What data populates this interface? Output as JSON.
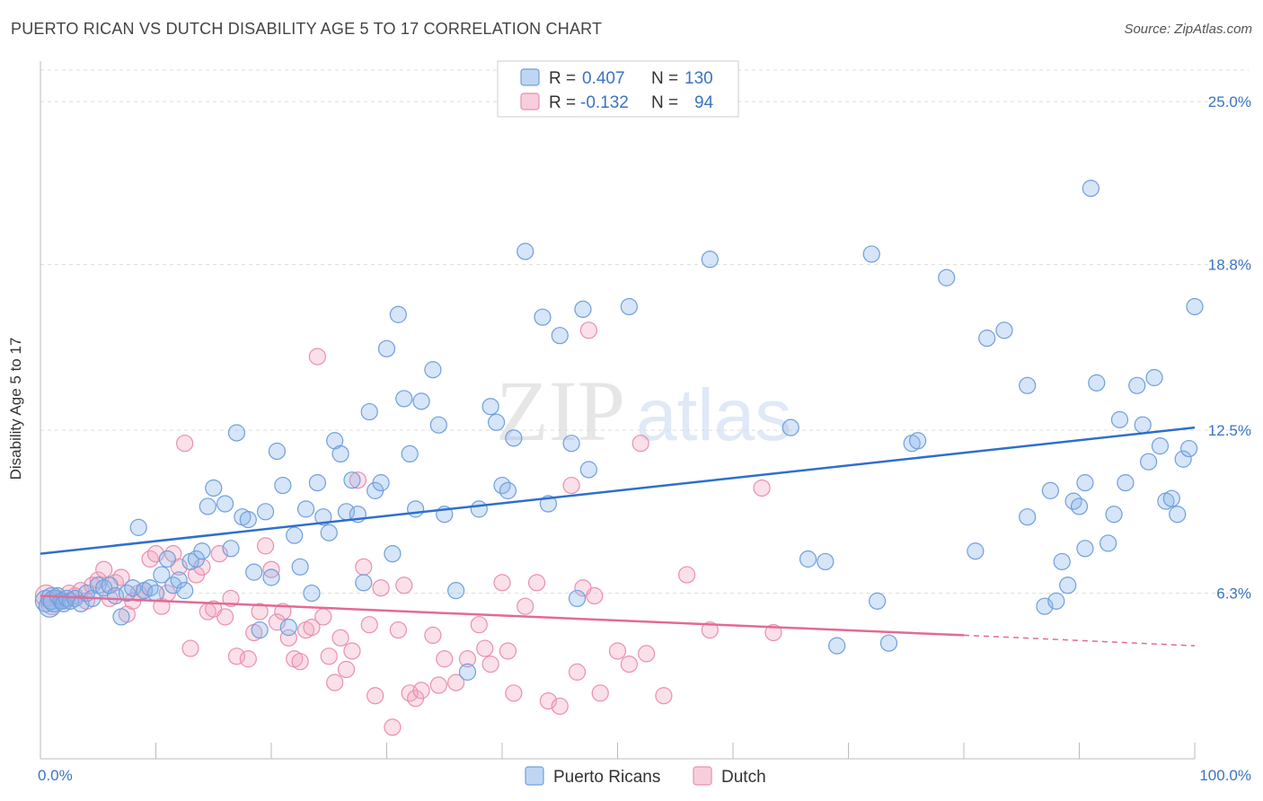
{
  "title": "PUERTO RICAN VS DUTCH DISABILITY AGE 5 TO 17 CORRELATION CHART",
  "source": "Source: ZipAtlas.com",
  "watermark": {
    "zip": "ZIP",
    "atlas": "atlas"
  },
  "colors": {
    "blue": "#8ab4ea",
    "blue_line": "#2f6fcc",
    "pink": "#f2a6bf",
    "pink_line": "#e36a96",
    "tick_text": "#3a74c4",
    "grid": "#dddddd"
  },
  "legend": {
    "rows": [
      {
        "r_label": "R =",
        "r_value": "0.407",
        "n_label": "N =",
        "n_value": "130",
        "color": "blue"
      },
      {
        "r_label": "R =",
        "r_value": "-0.132",
        "n_label": "N =",
        "n_value": "94",
        "color": "pink"
      }
    ]
  },
  "bottom_legend": [
    {
      "label": "Puerto Ricans",
      "color": "blue"
    },
    {
      "label": "Dutch",
      "color": "pink"
    }
  ],
  "chart_data": {
    "type": "scatter",
    "title": "PUERTO RICAN VS DUTCH DISABILITY AGE 5 TO 17 CORRELATION CHART",
    "xlabel": "",
    "ylabel": "Disability Age 5 to 17",
    "xlim": [
      0,
      100
    ],
    "ylim": [
      0,
      25
    ],
    "x_tick_labels": [
      "0.0%",
      "100.0%"
    ],
    "y_ticks": [
      6.3,
      12.5,
      18.8,
      25.0
    ],
    "y_tick_labels": [
      "6.3%",
      "12.5%",
      "18.8%",
      "25.0%"
    ],
    "grid": true,
    "series": [
      {
        "name": "Puerto Ricans",
        "color": "blue",
        "trend": {
          "x": [
            0,
            100
          ],
          "y": [
            7.8,
            12.6
          ]
        },
        "points": [
          [
            0.5,
            6.0
          ],
          [
            0.8,
            5.8
          ],
          [
            1.0,
            6.1
          ],
          [
            1.2,
            6.0
          ],
          [
            1.5,
            6.2
          ],
          [
            1.8,
            6.0
          ],
          [
            2.0,
            5.9
          ],
          [
            2.3,
            6.1
          ],
          [
            2.6,
            6.0
          ],
          [
            3.0,
            6.1
          ],
          [
            3.5,
            5.9
          ],
          [
            4.0,
            6.3
          ],
          [
            4.5,
            6.1
          ],
          [
            5.0,
            6.6
          ],
          [
            5.5,
            6.5
          ],
          [
            6.0,
            6.6
          ],
          [
            6.5,
            6.2
          ],
          [
            7.0,
            5.4
          ],
          [
            7.5,
            6.3
          ],
          [
            8.0,
            6.5
          ],
          [
            8.5,
            8.8
          ],
          [
            9.0,
            6.4
          ],
          [
            9.5,
            6.5
          ],
          [
            10.0,
            6.3
          ],
          [
            10.5,
            7.0
          ],
          [
            11.0,
            7.6
          ],
          [
            11.5,
            6.6
          ],
          [
            12.0,
            6.8
          ],
          [
            12.5,
            6.4
          ],
          [
            13.0,
            7.5
          ],
          [
            13.5,
            7.6
          ],
          [
            14.0,
            7.9
          ],
          [
            14.5,
            9.6
          ],
          [
            15.0,
            10.3
          ],
          [
            16.0,
            9.7
          ],
          [
            16.5,
            8.0
          ],
          [
            17.0,
            12.4
          ],
          [
            17.5,
            9.2
          ],
          [
            18.0,
            9.1
          ],
          [
            18.5,
            7.1
          ],
          [
            19.0,
            4.9
          ],
          [
            19.5,
            9.4
          ],
          [
            20.0,
            6.9
          ],
          [
            20.5,
            11.7
          ],
          [
            21.0,
            10.4
          ],
          [
            21.5,
            5.0
          ],
          [
            22.0,
            8.5
          ],
          [
            22.5,
            7.3
          ],
          [
            23.0,
            9.5
          ],
          [
            23.5,
            6.3
          ],
          [
            24.0,
            10.5
          ],
          [
            24.5,
            9.2
          ],
          [
            25.0,
            8.6
          ],
          [
            25.5,
            12.1
          ],
          [
            26.0,
            11.6
          ],
          [
            26.5,
            9.4
          ],
          [
            27.0,
            10.6
          ],
          [
            27.5,
            9.3
          ],
          [
            28.0,
            6.7
          ],
          [
            28.5,
            13.2
          ],
          [
            29.0,
            10.2
          ],
          [
            29.5,
            10.5
          ],
          [
            30.0,
            15.6
          ],
          [
            30.5,
            7.8
          ],
          [
            31.0,
            16.9
          ],
          [
            31.5,
            13.7
          ],
          [
            32.0,
            11.6
          ],
          [
            32.5,
            9.5
          ],
          [
            33.0,
            13.6
          ],
          [
            34.0,
            14.8
          ],
          [
            34.5,
            12.7
          ],
          [
            35.0,
            9.3
          ],
          [
            36.0,
            6.4
          ],
          [
            37.0,
            3.3
          ],
          [
            38.0,
            9.5
          ],
          [
            39.0,
            13.4
          ],
          [
            39.5,
            12.8
          ],
          [
            40.0,
            10.4
          ],
          [
            40.5,
            10.2
          ],
          [
            41.0,
            12.2
          ],
          [
            42.0,
            19.3
          ],
          [
            43.5,
            16.8
          ],
          [
            44.0,
            9.7
          ],
          [
            45.0,
            16.1
          ],
          [
            46.0,
            12.0
          ],
          [
            46.5,
            6.1
          ],
          [
            47.0,
            17.1
          ],
          [
            47.5,
            11.0
          ],
          [
            51.0,
            17.2
          ],
          [
            58.0,
            19.0
          ],
          [
            65.0,
            12.6
          ],
          [
            66.5,
            7.6
          ],
          [
            68.0,
            7.5
          ],
          [
            69.0,
            4.3
          ],
          [
            72.0,
            19.2
          ],
          [
            72.5,
            6.0
          ],
          [
            73.5,
            4.4
          ],
          [
            75.5,
            12.0
          ],
          [
            76.0,
            12.1
          ],
          [
            78.5,
            18.3
          ],
          [
            81.0,
            7.9
          ],
          [
            82.0,
            16.0
          ],
          [
            83.5,
            16.3
          ],
          [
            85.5,
            14.2
          ],
          [
            85.5,
            9.2
          ],
          [
            87.0,
            5.8
          ],
          [
            87.5,
            10.2
          ],
          [
            88.0,
            6.0
          ],
          [
            88.5,
            7.5
          ],
          [
            89.0,
            6.6
          ],
          [
            89.5,
            9.8
          ],
          [
            90.0,
            9.6
          ],
          [
            90.5,
            8.0
          ],
          [
            90.5,
            10.5
          ],
          [
            91.0,
            21.7
          ],
          [
            91.5,
            14.3
          ],
          [
            92.5,
            8.2
          ],
          [
            93.0,
            9.3
          ],
          [
            93.5,
            12.9
          ],
          [
            94.0,
            10.5
          ],
          [
            95.0,
            14.2
          ],
          [
            95.5,
            12.7
          ],
          [
            96.0,
            11.3
          ],
          [
            96.5,
            14.5
          ],
          [
            97.0,
            11.9
          ],
          [
            97.5,
            9.8
          ],
          [
            98.0,
            9.9
          ],
          [
            98.5,
            9.3
          ],
          [
            99.0,
            11.4
          ],
          [
            99.5,
            11.8
          ],
          [
            100.0,
            17.2
          ]
        ]
      },
      {
        "name": "Dutch",
        "color": "pink",
        "trend": {
          "x": [
            0,
            80
          ],
          "y": [
            6.2,
            4.7
          ]
        },
        "trend_dashed": {
          "x": [
            80,
            100
          ],
          "y": [
            4.7,
            4.3
          ]
        },
        "points": [
          [
            0.5,
            6.2
          ],
          [
            1.0,
            5.9
          ],
          [
            1.5,
            6.1
          ],
          [
            2.0,
            6.0
          ],
          [
            2.5,
            6.3
          ],
          [
            3.0,
            6.2
          ],
          [
            3.5,
            6.4
          ],
          [
            4.0,
            6.0
          ],
          [
            4.5,
            6.6
          ],
          [
            5.0,
            6.8
          ],
          [
            5.5,
            7.2
          ],
          [
            6.0,
            6.1
          ],
          [
            6.5,
            6.7
          ],
          [
            7.0,
            6.9
          ],
          [
            7.5,
            5.5
          ],
          [
            8.0,
            6.0
          ],
          [
            8.5,
            6.3
          ],
          [
            9.0,
            6.4
          ],
          [
            9.5,
            7.6
          ],
          [
            10.0,
            7.8
          ],
          [
            10.5,
            5.8
          ],
          [
            11.0,
            6.3
          ],
          [
            11.5,
            7.8
          ],
          [
            12.0,
            7.3
          ],
          [
            12.5,
            12.0
          ],
          [
            13.0,
            4.2
          ],
          [
            13.5,
            7.0
          ],
          [
            14.0,
            7.3
          ],
          [
            14.5,
            5.6
          ],
          [
            15.0,
            5.7
          ],
          [
            15.5,
            7.8
          ],
          [
            16.0,
            5.4
          ],
          [
            16.5,
            6.1
          ],
          [
            17.0,
            3.9
          ],
          [
            18.0,
            3.8
          ],
          [
            18.5,
            4.8
          ],
          [
            19.0,
            5.6
          ],
          [
            19.5,
            8.1
          ],
          [
            20.0,
            7.2
          ],
          [
            20.5,
            5.2
          ],
          [
            21.0,
            5.6
          ],
          [
            21.5,
            4.6
          ],
          [
            22.0,
            3.8
          ],
          [
            22.5,
            3.7
          ],
          [
            23.0,
            4.9
          ],
          [
            23.5,
            5.0
          ],
          [
            24.0,
            15.3
          ],
          [
            24.5,
            5.4
          ],
          [
            25.0,
            3.9
          ],
          [
            25.5,
            2.9
          ],
          [
            26.0,
            4.6
          ],
          [
            26.5,
            3.4
          ],
          [
            27.0,
            4.1
          ],
          [
            27.5,
            10.6
          ],
          [
            28.0,
            7.3
          ],
          [
            28.5,
            5.1
          ],
          [
            29.0,
            2.4
          ],
          [
            29.5,
            6.5
          ],
          [
            30.5,
            1.2
          ],
          [
            31.0,
            4.9
          ],
          [
            31.5,
            6.6
          ],
          [
            32.0,
            2.5
          ],
          [
            32.5,
            2.3
          ],
          [
            33.0,
            2.6
          ],
          [
            34.0,
            4.7
          ],
          [
            34.5,
            2.8
          ],
          [
            35.0,
            3.8
          ],
          [
            36.0,
            2.9
          ],
          [
            37.0,
            3.8
          ],
          [
            38.0,
            5.1
          ],
          [
            38.5,
            4.2
          ],
          [
            39.0,
            3.6
          ],
          [
            40.0,
            6.7
          ],
          [
            40.5,
            4.1
          ],
          [
            41.0,
            2.5
          ],
          [
            42.0,
            5.8
          ],
          [
            43.0,
            6.7
          ],
          [
            44.0,
            2.2
          ],
          [
            45.0,
            2.0
          ],
          [
            46.0,
            10.4
          ],
          [
            46.5,
            3.3
          ],
          [
            47.0,
            6.5
          ],
          [
            47.5,
            16.3
          ],
          [
            48.0,
            6.2
          ],
          [
            50.0,
            4.1
          ],
          [
            51.0,
            3.6
          ],
          [
            52.0,
            12.0
          ],
          [
            52.5,
            4.0
          ],
          [
            54.0,
            2.4
          ],
          [
            56.0,
            7.0
          ],
          [
            58.0,
            4.9
          ],
          [
            62.5,
            10.3
          ],
          [
            63.5,
            4.8
          ],
          [
            48.5,
            2.5
          ]
        ]
      }
    ]
  }
}
